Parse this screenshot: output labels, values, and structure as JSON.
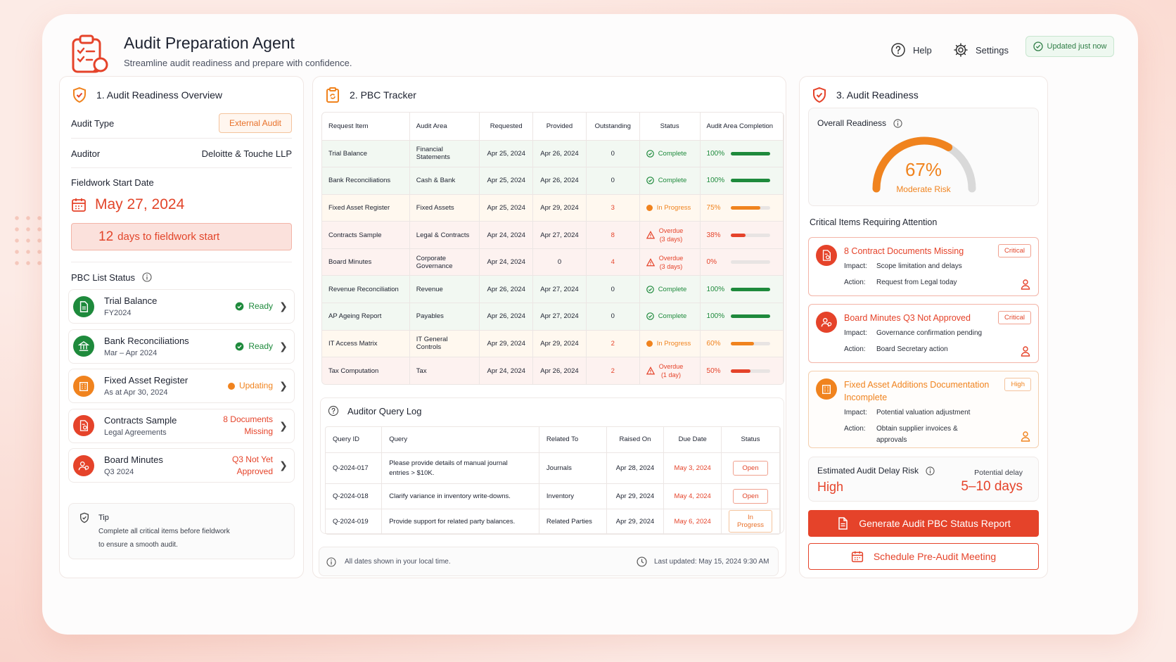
{
  "header": {
    "title": "Audit Preparation Agent",
    "subtitle": "Streamline audit readiness and prepare with confidence.",
    "help": "Help",
    "settings": "Settings",
    "updated": "Updated just now"
  },
  "overview": {
    "title": "1. Audit Readiness Overview",
    "audit_type_label": "Audit Type",
    "audit_type": "External Audit",
    "auditor_label": "Auditor",
    "auditor": "Deloitte & Touche LLP",
    "fieldwork_label": "Fieldwork Start Date",
    "fieldwork_date": "May 27, 2024",
    "days_num": "12",
    "days_text": "days to fieldwork start",
    "pbc_list_label": "PBC List Status",
    "items": [
      {
        "name": "Trial Balance",
        "sub": "FY2024",
        "status": "Ready",
        "kind": "ready",
        "icon": "document-icon"
      },
      {
        "name": "Bank Reconciliations",
        "sub": "Mar – Apr 2024",
        "status": "Ready",
        "kind": "ready",
        "icon": "bank-icon"
      },
      {
        "name": "Fixed Asset Register",
        "sub": "As at Apr 30, 2024",
        "status": "Updating",
        "kind": "updating",
        "icon": "building-icon"
      },
      {
        "name": "Contracts Sample",
        "sub": "Legal Agreements",
        "status_line1": "8 Documents",
        "status_line2": "Missing",
        "kind": "missing",
        "icon": "contract-icon"
      },
      {
        "name": "Board Minutes",
        "sub": "Q3 2024",
        "status_line1": "Q3 Not Yet",
        "status_line2": "Approved",
        "kind": "missing",
        "icon": "people-icon"
      }
    ],
    "tip_title": "Tip",
    "tip_line1": "Complete all critical items before fieldwork",
    "tip_line2": "to ensure a smooth audit."
  },
  "tracker": {
    "title": "2. PBC Tracker",
    "columns": [
      "Request Item",
      "Audit Area",
      "Requested",
      "Provided",
      "Outstanding",
      "Status",
      "Audit Area Completion"
    ],
    "rows": [
      {
        "item": "Trial Balance",
        "area": "Financial Statements",
        "requested": "Apr 25, 2024",
        "provided": "Apr 26, 2024",
        "outstanding": "0",
        "status": "Complete",
        "kind": "complete",
        "completion": "100%",
        "pct": 100
      },
      {
        "item": "Bank Reconciliations",
        "area": "Cash & Bank",
        "requested": "Apr 25, 2024",
        "provided": "Apr 26, 2024",
        "outstanding": "0",
        "status": "Complete",
        "kind": "complete",
        "completion": "100%",
        "pct": 100
      },
      {
        "item": "Fixed Asset Register",
        "area": "Fixed Assets",
        "requested": "Apr 25, 2024",
        "provided": "Apr 29, 2024",
        "outstanding": "3",
        "status": "In Progress",
        "kind": "progress",
        "completion": "75%",
        "pct": 75
      },
      {
        "item": "Contracts Sample",
        "area": "Legal & Contracts",
        "requested": "Apr 24, 2024",
        "provided": "Apr 27, 2024",
        "outstanding": "8",
        "status": "Overdue",
        "status2": "(3 days)",
        "kind": "overdue",
        "completion": "38%",
        "pct": 38
      },
      {
        "item": "Board Minutes",
        "area": "Corporate Governance",
        "requested": "Apr 24, 2024",
        "provided": "0",
        "outstanding": "4",
        "status": "Overdue",
        "status2": "(3 days)",
        "kind": "overdue",
        "completion": "0%",
        "pct": 0
      },
      {
        "item": "Revenue Reconciliation",
        "area": "Revenue",
        "requested": "Apr 26, 2024",
        "provided": "Apr 27, 2024",
        "outstanding": "0",
        "status": "Complete",
        "kind": "complete",
        "completion": "100%",
        "pct": 100
      },
      {
        "item": "AP Ageing Report",
        "area": "Payables",
        "requested": "Apr 26, 2024",
        "provided": "Apr 27, 2024",
        "outstanding": "0",
        "status": "Complete",
        "kind": "complete",
        "completion": "100%",
        "pct": 100
      },
      {
        "item": "IT Access Matrix",
        "area": "IT General Controls",
        "requested": "Apr 29, 2024",
        "provided": "Apr 29, 2024",
        "outstanding": "2",
        "status": "In Progress",
        "kind": "progress",
        "completion": "60%",
        "pct": 60
      },
      {
        "item": "Tax Computation",
        "area": "Tax",
        "requested": "Apr 24, 2024",
        "provided": "Apr 26, 2024",
        "outstanding": "2",
        "status": "Overdue",
        "status2": "(1 day)",
        "kind": "overdue",
        "completion": "50%",
        "pct": 50
      }
    ]
  },
  "query_log": {
    "title": "Auditor Query Log",
    "columns": [
      "Query ID",
      "Query",
      "Related To",
      "Raised On",
      "Due Date",
      "Status"
    ],
    "rows": [
      {
        "id": "Q-2024-017",
        "query": "Please provide details of manual journal",
        "query2": "entries > $10K.",
        "related": "Journals",
        "raised": "Apr 28, 2024",
        "due": "May 3, 2024",
        "status": "Open",
        "kind": "open"
      },
      {
        "id": "Q-2024-018",
        "query": "Clarify variance in inventory write-downs.",
        "query2": "",
        "related": "Inventory",
        "raised": "Apr 29, 2024",
        "due": "May 4, 2024",
        "status": "Open",
        "kind": "open"
      },
      {
        "id": "Q-2024-019",
        "query": "Provide support for related party balances.",
        "query2": "",
        "related": "Related Parties",
        "raised": "Apr 29, 2024",
        "due": "May 6, 2024",
        "status": "In Progress",
        "kind": "progress"
      }
    ],
    "footer_left": "All dates shown in your local time.",
    "footer_right": "Last updated: May 15, 2024 9:30 AM"
  },
  "readiness": {
    "title": "3. Audit Readiness",
    "overall_label": "Overall Readiness",
    "percent": "67%",
    "percent_value": 67,
    "risk": "Moderate Risk",
    "critical_label": "Critical Items Requiring Attention",
    "impact_label": "Impact:",
    "action_label": "Action:",
    "items": [
      {
        "title": "8 Contract Documents Missing",
        "badge": "Critical",
        "impact": "Scope limitation and delays",
        "action": "Request from Legal today",
        "kind": "critical",
        "icon": "contract-icon"
      },
      {
        "title": "Board Minutes Q3 Not Approved",
        "badge": "Critical",
        "impact": "Governance confirmation pending",
        "action": "Board Secretary action",
        "kind": "critical",
        "icon": "people-icon"
      },
      {
        "title": "Fixed Asset Additions Documentation",
        "title2": "Incomplete",
        "badge": "High",
        "impact": "Potential valuation adjustment",
        "action": "Obtain supplier invoices &",
        "action2": "approvals",
        "kind": "high",
        "icon": "building-icon"
      }
    ],
    "delay_label": "Estimated Audit Delay Risk",
    "delay_value": "High",
    "potential_label": "Potential delay",
    "potential_value": "5–10 days",
    "generate_btn": "Generate Audit PBC Status Report",
    "schedule_btn": "Schedule Pre-Audit Meeting"
  },
  "colors": {
    "accent": "#e5432a",
    "orange": "#f0831e",
    "green": "#1e8a3c",
    "critical_bg": "#e5432a"
  }
}
